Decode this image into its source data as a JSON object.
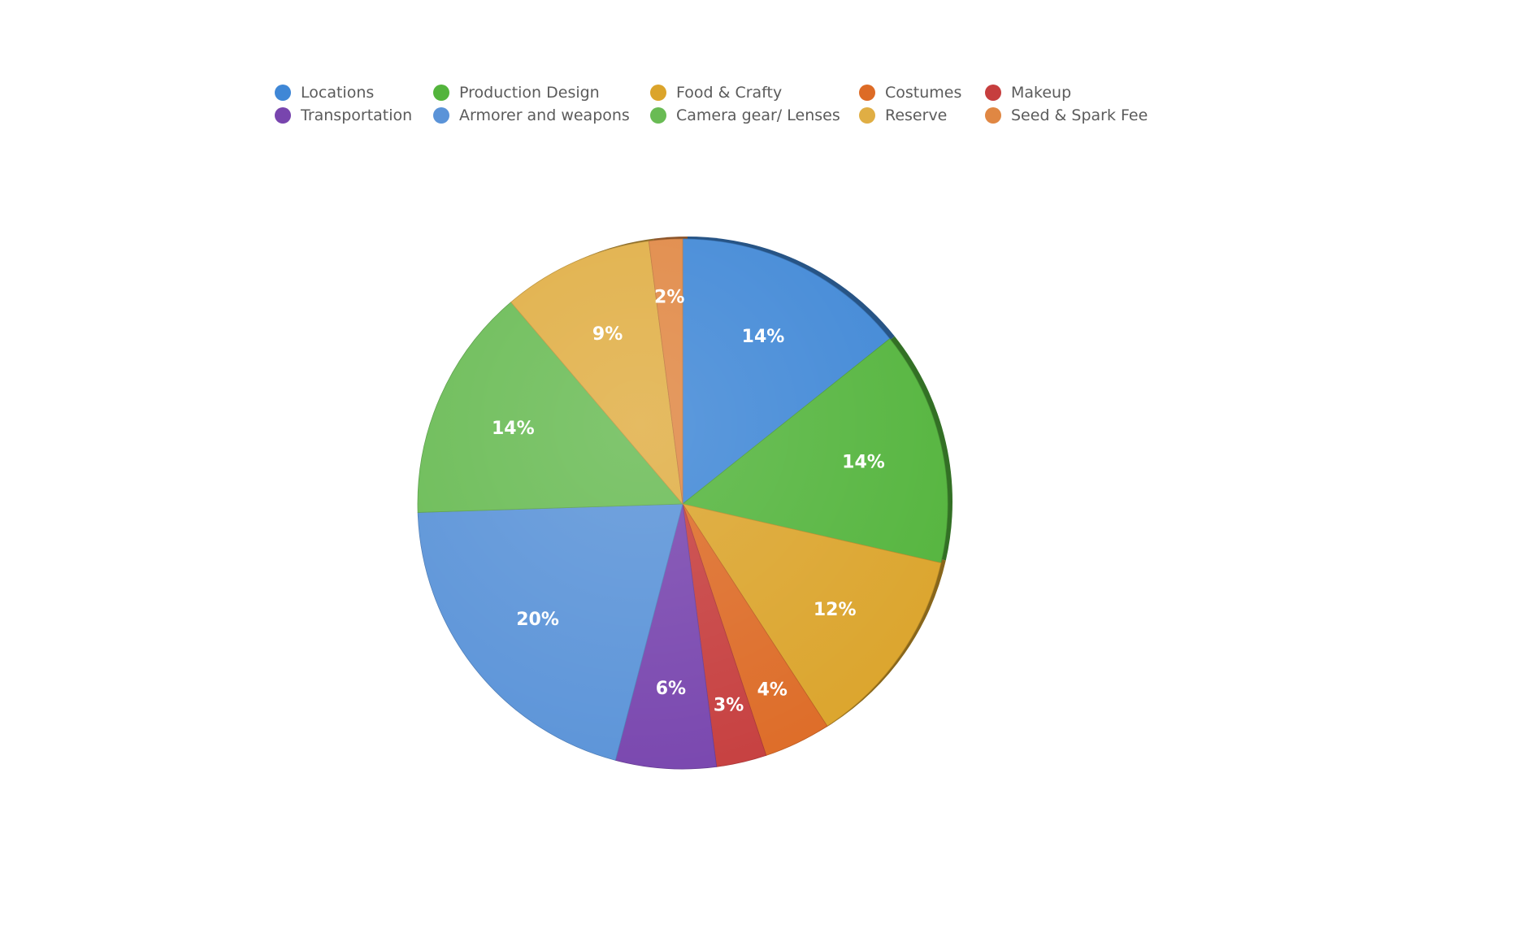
{
  "chart_data": {
    "type": "pie",
    "legend_position": "top",
    "label_format": "percent",
    "slices": [
      {
        "name": "Locations",
        "value": 14,
        "label": "14%",
        "color": "#3f87d6"
      },
      {
        "name": "Production Design",
        "value": 14,
        "label": "14%",
        "color": "#53b43c"
      },
      {
        "name": "Food & Crafty",
        "value": 12,
        "label": "12%",
        "color": "#dba42b"
      },
      {
        "name": "Costumes",
        "value": 4,
        "label": "4%",
        "color": "#dd6b26"
      },
      {
        "name": "Makeup",
        "value": 3,
        "label": "3%",
        "color": "#c63e3e"
      },
      {
        "name": "Transportation",
        "value": 6,
        "label": "6%",
        "color": "#7845ae"
      },
      {
        "name": "Armorer and weapons",
        "value": 20,
        "label": "20%",
        "color": "#5a93d8"
      },
      {
        "name": "Camera gear/ Lenses",
        "value": 14,
        "label": "14%",
        "color": "#69bb54"
      },
      {
        "name": "Reserve",
        "value": 9,
        "label": "9%",
        "color": "#e0ae44"
      },
      {
        "name": "Seed & Spark Fee",
        "value": 2,
        "label": "2%",
        "color": "#e08743"
      }
    ]
  }
}
